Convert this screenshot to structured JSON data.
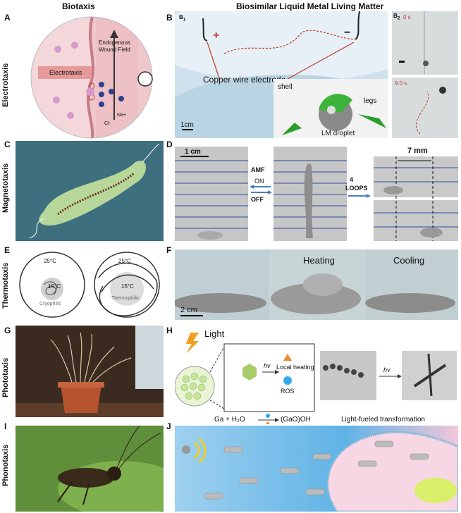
{
  "headers": {
    "left": "Biotaxis",
    "right": "Biosimilar Liquid Metal Living Matter"
  },
  "rows": [
    {
      "letter_left": "A",
      "letter_right": "B",
      "side": "Electrotaxis"
    },
    {
      "letter_left": "C",
      "letter_right": "D",
      "side": "Magnetotaxis"
    },
    {
      "letter_left": "E",
      "letter_right": "F",
      "side": "Thermotaxis"
    },
    {
      "letter_left": "G",
      "letter_right": "H",
      "side": "Phototaxis"
    },
    {
      "letter_left": "I",
      "letter_right": "J",
      "side": "Phonotaxis"
    }
  ],
  "panelA": {
    "electrotaxis": "Electrotaxis",
    "field": "Endogenous\nWound Field",
    "na": "Na+",
    "cl": "Cl-"
  },
  "panelB": {
    "sub1": "B",
    "sub1_index": "1",
    "sub2": "B",
    "sub2_index": "2",
    "plus": "+",
    "minus": "−",
    "electrode": "Copper wire electrode",
    "scale": "1cm",
    "shell": "shell",
    "legs": "legs",
    "droplet": "LM droplet",
    "t0": "0 s",
    "t1": "9.0 s"
  },
  "panelD": {
    "scale": "1 cm",
    "amf": "AMF",
    "on": "ON",
    "off": "OFF",
    "loops_n": "4",
    "loops": "LOOPS",
    "dist": "7 mm"
  },
  "panelE": {
    "t_outer": "25°C",
    "t_inner": "15°C",
    "cryo": "Cryophilic",
    "thermo": "Thermophilic"
  },
  "panelF": {
    "heating": "Heating",
    "cooling": "Cooling",
    "scale": "2 cm"
  },
  "panelH": {
    "light": "Light",
    "hv": "hv",
    "local": "Local heating",
    "ros": "ROS",
    "reaction": "Ga + H₂O",
    "product": "(GaO)OH",
    "transform": "Light-fueled transformation"
  },
  "colors": {
    "accent_red": "#c0392b",
    "arrow_blue": "#4a7fc1"
  }
}
